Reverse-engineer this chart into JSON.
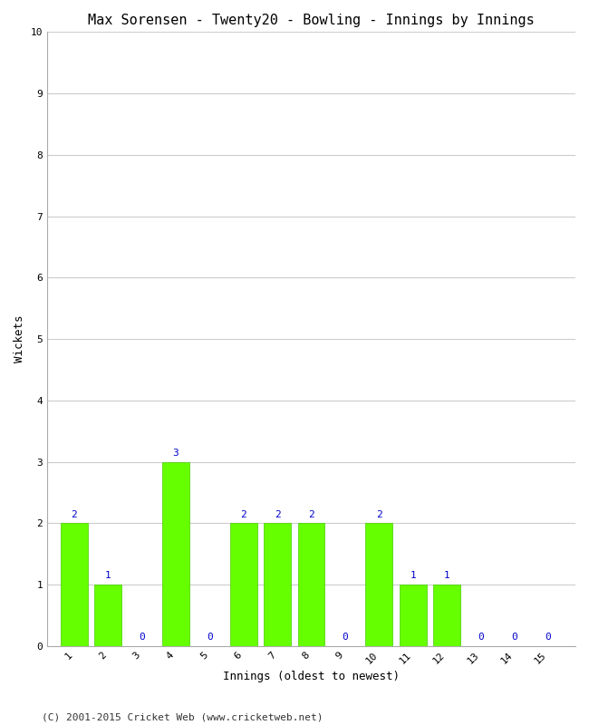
{
  "title": "Max Sorensen - Twenty20 - Bowling - Innings by Innings",
  "xlabel": "Innings (oldest to newest)",
  "ylabel": "Wickets",
  "innings": [
    1,
    2,
    3,
    4,
    5,
    6,
    7,
    8,
    9,
    10,
    11,
    12,
    13,
    14,
    15
  ],
  "wickets": [
    2,
    1,
    0,
    3,
    0,
    2,
    2,
    2,
    0,
    2,
    1,
    1,
    0,
    0,
    0
  ],
  "bar_color": "#66ff00",
  "bar_edge_color": "#44cc00",
  "ylim": [
    0,
    10
  ],
  "yticks": [
    0,
    1,
    2,
    3,
    4,
    5,
    6,
    7,
    8,
    9,
    10
  ],
  "label_color": "#0000cc",
  "background_color": "#ffffff",
  "grid_color": "#cccccc",
  "footer": "(C) 2001-2015 Cricket Web (www.cricketweb.net)",
  "title_fontsize": 11,
  "axis_label_fontsize": 9,
  "tick_label_fontsize": 8,
  "bar_label_fontsize": 8,
  "footer_fontsize": 8
}
